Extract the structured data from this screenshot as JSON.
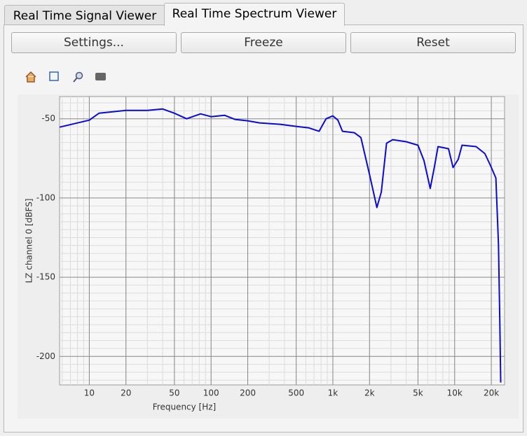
{
  "tabs": [
    "Real Time Signal Viewer",
    "Real Time Spectrum Viewer"
  ],
  "buttons": [
    "Settings...",
    "Freeze",
    "Reset"
  ],
  "chart_data": {
    "type": "line",
    "xlabel": "Frequency [Hz]",
    "ylabel": "LZ channel 0 [dBFS]",
    "xscale": "log",
    "grid": true,
    "minor_grid": true,
    "color": "#0a0ad8",
    "xlim": [
      5.7,
      25700
    ],
    "ylim": [
      -218,
      -36
    ],
    "xticks": [
      10,
      20,
      50,
      100,
      200,
      500,
      {
        "value": 1000,
        "label": "1k"
      },
      {
        "value": 2000,
        "label": "2k"
      },
      {
        "value": 5000,
        "label": "5k"
      },
      {
        "value": 10000,
        "label": "10k"
      },
      {
        "value": 20000,
        "label": "20k"
      }
    ],
    "yticks": [
      -50,
      -100,
      -150,
      -200
    ],
    "x": [
      5.7,
      10,
      12,
      20,
      30,
      40,
      50,
      63,
      82,
      100,
      129,
      157,
      200,
      250,
      370,
      500,
      630,
      770,
      880,
      1000,
      1100,
      1200,
      1500,
      1700,
      2000,
      2300,
      2500,
      2760,
      3100,
      4000,
      5000,
      5600,
      6300,
      6800,
      7300,
      8900,
      9700,
      10700,
      11500,
      15000,
      17700,
      19700,
      21800,
      22900,
      23500,
      23900
    ],
    "values": [
      -55.3,
      -50.9,
      -46.5,
      -44.7,
      -44.7,
      -43.8,
      -46.5,
      -50,
      -46.9,
      -48.7,
      -47.8,
      -50.4,
      -51.3,
      -52.6,
      -53.5,
      -54.8,
      -55.7,
      -57.9,
      -50,
      -48.2,
      -50.9,
      -57.9,
      -58.8,
      -61.9,
      -85.2,
      -106,
      -96.3,
      -65.4,
      -63.2,
      -64.5,
      -66.7,
      -76.4,
      -94,
      -80.8,
      -67.6,
      -68.9,
      -80.8,
      -75.6,
      -66.7,
      -67.6,
      -72,
      -79.5,
      -87.4,
      -129.3,
      -177.8,
      -216.5
    ]
  }
}
